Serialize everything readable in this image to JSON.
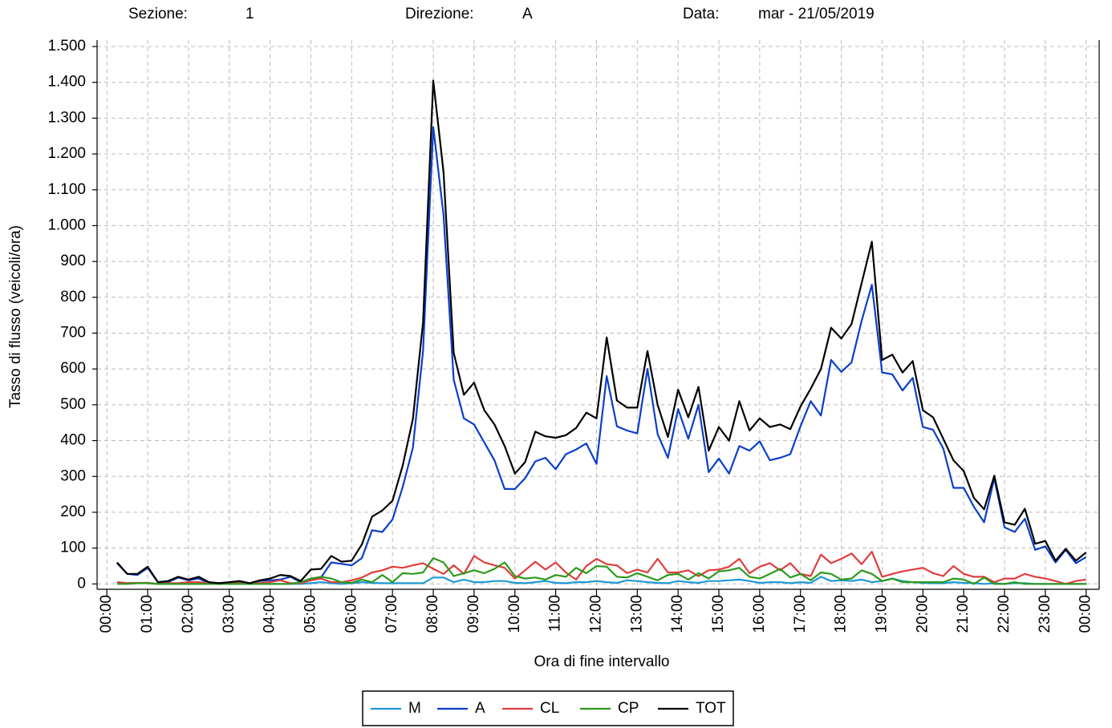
{
  "chart_data": {
    "type": "line",
    "header": {
      "section_label": "Sezione:",
      "section": "1",
      "direction_label": "Direzione:",
      "direction": "A",
      "date_label": "Data:",
      "date": "mar - 21/05/2019"
    },
    "xlabel": "Ora di fine intervallo",
    "ylabel": "Tasso di flusso (veicoli/ora)",
    "grid": true,
    "legend": "bottom",
    "xlim": [
      -0.24,
      24.32
    ],
    "ylim": [
      -15,
      1500
    ],
    "xticks": [
      {
        "value": 0,
        "label": "00:00"
      },
      {
        "value": 1,
        "label": "01:00"
      },
      {
        "value": 2,
        "label": "02:00"
      },
      {
        "value": 3,
        "label": "03:00"
      },
      {
        "value": 4,
        "label": "04:00"
      },
      {
        "value": 5,
        "label": "05:00"
      },
      {
        "value": 6,
        "label": "06:00"
      },
      {
        "value": 7,
        "label": "07:00"
      },
      {
        "value": 8,
        "label": "08:00"
      },
      {
        "value": 9,
        "label": "09:00"
      },
      {
        "value": 10,
        "label": "10:00"
      },
      {
        "value": 11,
        "label": "11:00"
      },
      {
        "value": 12,
        "label": "12:00"
      },
      {
        "value": 13,
        "label": "13:00"
      },
      {
        "value": 14,
        "label": "14:00"
      },
      {
        "value": 15,
        "label": "15:00"
      },
      {
        "value": 16,
        "label": "16:00"
      },
      {
        "value": 17,
        "label": "17:00"
      },
      {
        "value": 18,
        "label": "18:00"
      },
      {
        "value": 19,
        "label": "19:00"
      },
      {
        "value": 20,
        "label": "20:00"
      },
      {
        "value": 21,
        "label": "21:00"
      },
      {
        "value": 22,
        "label": "22:00"
      },
      {
        "value": 23,
        "label": "23:00"
      },
      {
        "value": 24,
        "label": "00:00"
      }
    ],
    "yticks": [
      0,
      100,
      200,
      300,
      400,
      500,
      600,
      700,
      800,
      900,
      {
        "value": 1000,
        "label": "1.000"
      },
      {
        "value": 1100,
        "label": "1.100"
      },
      {
        "value": 1200,
        "label": "1.200"
      },
      {
        "value": 1300,
        "label": "1.300"
      },
      {
        "value": 1400,
        "label": "1.400"
      },
      {
        "value": 1500,
        "label": "1.500"
      }
    ],
    "x": [
      0.25,
      0.5,
      0.75,
      1,
      1.25,
      1.5,
      1.75,
      2,
      2.25,
      2.5,
      2.75,
      3,
      3.25,
      3.5,
      3.75,
      4,
      4.25,
      4.5,
      4.75,
      5,
      5.25,
      5.5,
      5.75,
      6,
      6.25,
      6.5,
      6.75,
      7,
      7.25,
      7.5,
      7.75,
      8,
      8.25,
      8.5,
      8.75,
      9,
      9.25,
      9.5,
      9.75,
      10,
      10.25,
      10.5,
      10.75,
      11,
      11.25,
      11.5,
      11.75,
      12,
      12.25,
      12.5,
      12.75,
      13,
      13.25,
      13.5,
      13.75,
      14,
      14.25,
      14.5,
      14.75,
      15,
      15.25,
      15.5,
      15.75,
      16,
      16.25,
      16.5,
      16.75,
      17,
      17.25,
      17.5,
      17.75,
      18,
      18.25,
      18.5,
      18.75,
      19,
      19.25,
      19.5,
      19.75,
      20,
      20.25,
      20.5,
      20.75,
      21,
      21.25,
      21.5,
      21.75,
      22,
      22.25,
      22.5,
      22.75,
      23,
      23.25,
      23.5,
      23.75,
      24
    ],
    "series": [
      {
        "name": "M",
        "color": "#1e9ad6",
        "values": [
          5,
          2,
          2,
          2,
          0,
          0,
          0,
          0,
          0,
          0,
          0,
          0,
          0,
          0,
          0,
          0,
          0,
          0,
          0,
          2,
          5,
          2,
          0,
          2,
          5,
          3,
          2,
          2,
          2,
          2,
          2,
          18,
          18,
          5,
          12,
          5,
          5,
          8,
          8,
          3,
          2,
          5,
          8,
          3,
          2,
          5,
          5,
          8,
          5,
          3,
          10,
          8,
          5,
          3,
          2,
          8,
          5,
          3,
          8,
          8,
          10,
          12,
          8,
          3,
          5,
          5,
          2,
          5,
          3,
          20,
          8,
          10,
          8,
          12,
          5,
          8,
          15,
          8,
          5,
          3,
          2,
          2,
          5,
          3,
          2,
          0,
          2,
          0,
          2,
          2,
          0,
          0,
          0,
          0,
          0,
          0
        ]
      },
      {
        "name": "A",
        "color": "#0a3fc8",
        "values": [
          58,
          28,
          25,
          45,
          5,
          5,
          18,
          10,
          15,
          3,
          2,
          3,
          5,
          0,
          8,
          10,
          12,
          20,
          5,
          15,
          18,
          60,
          56,
          52,
          72,
          150,
          145,
          180,
          270,
          380,
          650,
          1275,
          1030,
          570,
          462,
          445,
          395,
          345,
          265,
          265,
          295,
          342,
          352,
          320,
          362,
          375,
          392,
          335,
          580,
          440,
          428,
          420,
          600,
          418,
          352,
          488,
          405,
          500,
          312,
          350,
          308,
          385,
          372,
          398,
          345,
          352,
          362,
          440,
          510,
          470,
          625,
          592,
          618,
          735,
          835,
          590,
          585,
          540,
          575,
          438,
          430,
          378,
          268,
          268,
          215,
          172,
          295,
          158,
          145,
          182,
          95,
          105,
          60,
          95,
          58,
          75
        ]
      },
      {
        "name": "CL",
        "color": "#e03c3c",
        "values": [
          5,
          2,
          3,
          3,
          0,
          2,
          2,
          5,
          5,
          2,
          0,
          2,
          2,
          2,
          2,
          5,
          10,
          2,
          2,
          10,
          15,
          5,
          5,
          10,
          18,
          32,
          38,
          48,
          45,
          52,
          58,
          42,
          28,
          52,
          28,
          78,
          60,
          52,
          45,
          15,
          38,
          62,
          40,
          60,
          32,
          12,
          50,
          70,
          55,
          52,
          30,
          40,
          32,
          70,
          32,
          32,
          38,
          22,
          38,
          40,
          48,
          70,
          30,
          48,
          58,
          38,
          58,
          28,
          22,
          82,
          58,
          70,
          85,
          55,
          90,
          20,
          28,
          35,
          40,
          45,
          30,
          22,
          50,
          28,
          20,
          20,
          5,
          15,
          15,
          28,
          20,
          15,
          8,
          0,
          8,
          12
        ]
      },
      {
        "name": "CP",
        "color": "#2c9a1c",
        "values": [
          0,
          0,
          2,
          2,
          0,
          0,
          0,
          0,
          0,
          0,
          0,
          0,
          0,
          0,
          0,
          0,
          0,
          0,
          5,
          15,
          20,
          15,
          5,
          3,
          12,
          5,
          25,
          5,
          30,
          28,
          32,
          72,
          60,
          22,
          30,
          38,
          30,
          42,
          60,
          22,
          15,
          18,
          12,
          25,
          20,
          45,
          30,
          50,
          48,
          20,
          18,
          30,
          20,
          10,
          25,
          28,
          12,
          30,
          15,
          35,
          38,
          45,
          20,
          15,
          28,
          42,
          18,
          28,
          10,
          32,
          28,
          12,
          15,
          38,
          28,
          8,
          15,
          5,
          5,
          5,
          5,
          5,
          15,
          12,
          0,
          18,
          0,
          0,
          5,
          0,
          0,
          0,
          0,
          0,
          0,
          0
        ]
      },
      {
        "name": "TOT",
        "color": "#000000",
        "values": [
          60,
          28,
          28,
          48,
          5,
          8,
          20,
          12,
          20,
          5,
          2,
          5,
          8,
          2,
          10,
          15,
          25,
          22,
          8,
          40,
          42,
          78,
          62,
          65,
          110,
          188,
          205,
          232,
          330,
          460,
          730,
          1405,
          1150,
          645,
          528,
          562,
          485,
          445,
          385,
          308,
          340,
          425,
          412,
          408,
          415,
          435,
          478,
          462,
          688,
          512,
          492,
          492,
          650,
          500,
          410,
          542,
          465,
          550,
          372,
          438,
          400,
          510,
          428,
          462,
          438,
          445,
          432,
          495,
          545,
          600,
          715,
          685,
          725,
          840,
          955,
          625,
          640,
          590,
          622,
          485,
          465,
          405,
          345,
          315,
          240,
          208,
          302,
          172,
          165,
          210,
          112,
          120,
          65,
          98,
          65,
          88
        ]
      }
    ]
  }
}
